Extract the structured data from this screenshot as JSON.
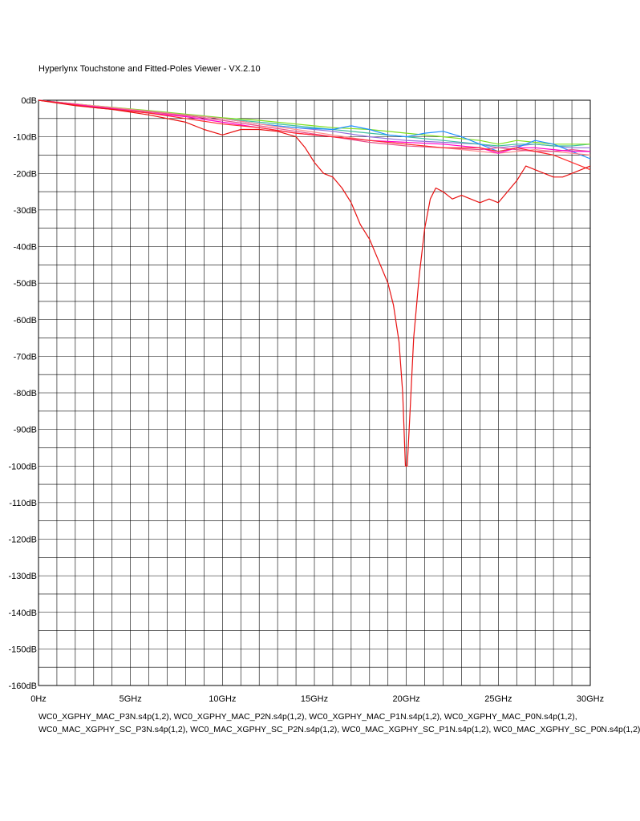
{
  "app_title": "Hyperlynx Touchstone and Fitted-Poles Viewer - VX.2.10",
  "chart_data": {
    "type": "line",
    "title": "",
    "xlabel": "",
    "ylabel": "",
    "xlim": [
      0,
      30
    ],
    "ylim": [
      -160,
      0
    ],
    "grid": true,
    "x_tick_labels": [
      "0Hz",
      "5GHz",
      "10GHz",
      "15GHz",
      "20GHz",
      "25GHz",
      "30GHz"
    ],
    "y_tick_labels": [
      "0dB",
      "-10dB",
      "-20dB",
      "-30dB",
      "-40dB",
      "-50dB",
      "-60dB",
      "-70dB",
      "-80dB",
      "-90dB",
      "-100dB",
      "-110dB",
      "-120dB",
      "-130dB",
      "-140dB",
      "-150dB",
      "-160dB"
    ],
    "legend_text": [
      "WC0_XGPHY_MAC_P3N.s4p(1,2), WC0_XGPHY_MAC_P2N.s4p(1,2), WC0_XGPHY_MAC_P1N.s4p(1,2), WC0_XGPHY_MAC_P0N.s4p(1,2),",
      "WC0_MAC_XGPHY_SC_P3N.s4p(1,2), WC0_MAC_XGPHY_SC_P2N.s4p(1,2), WC0_MAC_XGPHY_SC_P1N.s4p(1,2), WC0_MAC_XGPHY_SC_P0N.s4p(1,2)"
    ],
    "series": [
      {
        "color": "#e81010",
        "x": [
          0,
          2,
          4,
          6,
          8,
          9,
          10,
          11,
          12,
          13,
          14,
          14.5,
          15,
          15.5,
          16,
          16.5,
          17,
          17.5,
          18,
          18.5,
          19,
          19.3,
          19.6,
          19.8,
          19.95,
          20.05,
          20.2,
          20.4,
          20.7,
          21,
          21.3,
          21.6,
          22,
          22.5,
          23,
          23.5,
          24,
          24.5,
          25,
          25.5,
          26,
          26.5,
          27,
          27.5,
          28,
          28.5,
          29,
          29.5,
          30
        ],
        "y": [
          0,
          -1.5,
          -2.5,
          -4,
          -6,
          -8,
          -9.5,
          -8,
          -8,
          -8.5,
          -10,
          -13,
          -17,
          -20,
          -21,
          -24,
          -28,
          -34,
          -38,
          -44,
          -50,
          -56,
          -66,
          -80,
          -100,
          -100,
          -85,
          -65,
          -48,
          -35,
          -27,
          -24,
          -25,
          -27,
          -26,
          -27,
          -28,
          -27,
          -28,
          -25,
          -22,
          -18,
          -19,
          -20,
          -21,
          -21,
          -20,
          -19,
          -18
        ]
      },
      {
        "color": "#ff2a2a",
        "x": [
          0,
          3,
          6,
          8,
          10,
          12,
          14,
          16,
          18,
          20,
          22,
          24,
          25,
          26,
          27,
          28,
          29,
          30
        ],
        "y": [
          0,
          -2,
          -3.5,
          -5,
          -6.5,
          -7.5,
          -9,
          -10,
          -11,
          -12,
          -13,
          -13,
          -14,
          -13,
          -14,
          -15,
          -17,
          -19
        ]
      },
      {
        "color": "#ff00cc",
        "x": [
          0,
          3,
          6,
          8,
          10,
          12,
          14,
          16,
          18,
          20,
          22,
          24,
          25,
          26,
          27,
          28,
          29,
          30
        ],
        "y": [
          0,
          -1.8,
          -3.5,
          -4.5,
          -6,
          -7.5,
          -9,
          -10,
          -11,
          -11.5,
          -12,
          -13,
          -14.5,
          -13,
          -13,
          -13.5,
          -14,
          -14
        ]
      },
      {
        "color": "#e8508a",
        "x": [
          0,
          3,
          6,
          8,
          10,
          12,
          14,
          16,
          18,
          20,
          22,
          24,
          25,
          26,
          27,
          28,
          29,
          30
        ],
        "y": [
          0,
          -1.7,
          -3.2,
          -4.2,
          -5.5,
          -7,
          -8.5,
          -10,
          -11.5,
          -12.5,
          -13,
          -13.5,
          -13,
          -13.5,
          -14,
          -14,
          -13.5,
          -14
        ]
      },
      {
        "color": "#ff8c8c",
        "x": [
          0,
          3,
          6,
          8,
          10,
          12,
          14,
          16,
          18,
          20,
          22,
          24,
          25,
          26,
          27,
          28,
          29,
          30
        ],
        "y": [
          0,
          -1.5,
          -3,
          -4,
          -5,
          -6.5,
          -8,
          -9.5,
          -11,
          -12,
          -13,
          -14,
          -14.5,
          -14,
          -13.5,
          -14,
          -14.5,
          -15
        ]
      },
      {
        "color": "#1e90ff",
        "x": [
          0,
          3,
          6,
          8,
          10,
          12,
          14,
          16,
          17,
          18,
          19,
          20,
          21,
          22,
          23,
          24,
          25,
          26,
          27,
          28,
          29,
          30
        ],
        "y": [
          0,
          -1.6,
          -3,
          -4,
          -5,
          -6.5,
          -7.5,
          -8,
          -7,
          -8,
          -9.5,
          -10,
          -9,
          -8.5,
          -10,
          -12,
          -14,
          -13,
          -11,
          -12,
          -14,
          -16
        ]
      },
      {
        "color": "#7fe020",
        "x": [
          0,
          3,
          6,
          8,
          10,
          12,
          14,
          16,
          18,
          20,
          22,
          24,
          25,
          26,
          27,
          28,
          29,
          30
        ],
        "y": [
          0,
          -1.5,
          -2.8,
          -3.8,
          -4.8,
          -5.5,
          -6.5,
          -7.5,
          -8,
          -9,
          -10,
          -11,
          -12,
          -11,
          -11.5,
          -12,
          -12,
          -12
        ]
      },
      {
        "color": "#40c0a0",
        "x": [
          0,
          3,
          6,
          8,
          10,
          12,
          14,
          16,
          18,
          20,
          22,
          24,
          25,
          26,
          27,
          28,
          29,
          30
        ],
        "y": [
          0,
          -1.5,
          -2.9,
          -4,
          -5,
          -6,
          -7,
          -8,
          -9,
          -10,
          -11,
          -12,
          -12.5,
          -12,
          -12,
          -12.5,
          -12.5,
          -12
        ]
      },
      {
        "color": "#9370db",
        "x": [
          0,
          3,
          6,
          8,
          10,
          12,
          14,
          16,
          18,
          20,
          22,
          24,
          25,
          26,
          27,
          28,
          29,
          30
        ],
        "y": [
          0,
          -1.6,
          -3,
          -4,
          -5,
          -6.5,
          -7.5,
          -8.5,
          -10,
          -11,
          -11.5,
          -12,
          -13,
          -12.5,
          -12,
          -12.5,
          -13,
          -13
        ]
      }
    ]
  }
}
